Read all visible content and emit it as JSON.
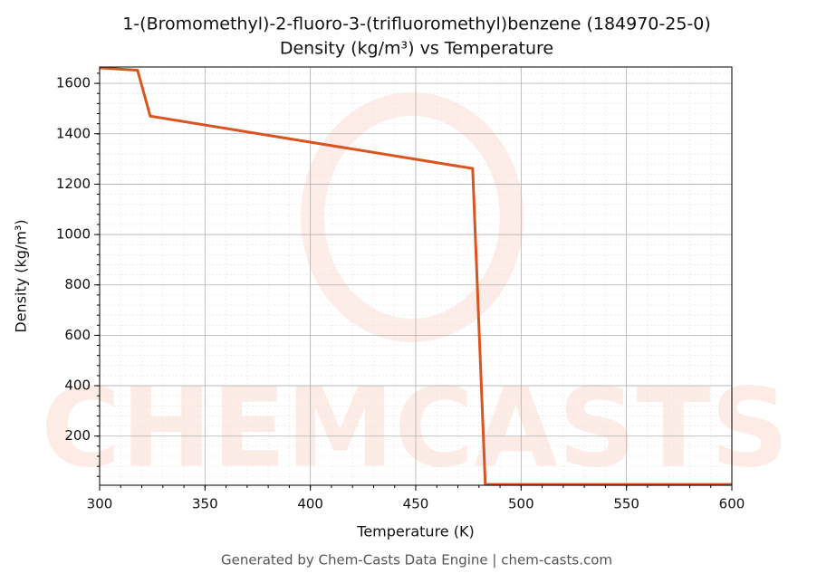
{
  "chart_data": {
    "type": "line",
    "title": "1-(Bromomethyl)-2-fluoro-3-(trifluoromethyl)benzene (184970-25-0)",
    "subtitle": "Density (kg/m³) vs Temperature",
    "x_label": "Temperature (K)",
    "y_label": "Density (kg/m³)",
    "footer": "Generated by Chem-Casts Data Engine | chem-casts.com",
    "watermark": "CHEMCASTS",
    "x": [
      300,
      318,
      324,
      477,
      483,
      600
    ],
    "series": [
      {
        "name": "Density",
        "color": "#d9541e",
        "values": [
          1662,
          1652,
          1470,
          1262,
          8,
          8
        ]
      }
    ],
    "xlim": [
      300,
      600
    ],
    "xticks": [
      300,
      350,
      400,
      450,
      500,
      550,
      600
    ],
    "ylim": [
      5,
      1665
    ],
    "yticks": [
      200,
      400,
      600,
      800,
      1000,
      1200,
      1400,
      1600
    ],
    "grid": true,
    "minor_grid": true
  }
}
